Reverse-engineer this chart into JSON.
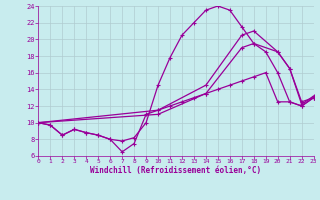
{
  "xlabel": "Windchill (Refroidissement éolien,°C)",
  "background_color": "#c8ecee",
  "grid_color": "#b0ccd0",
  "line_color": "#990099",
  "xlim": [
    0,
    23
  ],
  "ylim": [
    6,
    24
  ],
  "xticks": [
    0,
    1,
    2,
    3,
    4,
    5,
    6,
    7,
    8,
    9,
    10,
    11,
    12,
    13,
    14,
    15,
    16,
    17,
    18,
    19,
    20,
    21,
    22,
    23
  ],
  "yticks": [
    6,
    8,
    10,
    12,
    14,
    16,
    18,
    20,
    22,
    24
  ],
  "curve_high_x": [
    0,
    1,
    2,
    3,
    4,
    5,
    6,
    7,
    8,
    9,
    10,
    11,
    12,
    13,
    14,
    15,
    16,
    17,
    18,
    19,
    20,
    21,
    22,
    23
  ],
  "curve_high_y": [
    10.0,
    9.7,
    8.5,
    9.2,
    8.8,
    8.5,
    8.0,
    7.8,
    8.2,
    10.0,
    14.5,
    17.8,
    20.5,
    22.0,
    23.5,
    24.0,
    23.5,
    21.5,
    19.5,
    18.5,
    16.0,
    12.5,
    12.0,
    13.0
  ],
  "curve_diag_x": [
    0,
    10,
    14,
    17,
    18,
    20,
    21,
    22,
    23
  ],
  "curve_diag_y": [
    10.0,
    11.5,
    14.5,
    20.5,
    21.0,
    18.5,
    16.5,
    12.5,
    13.0
  ],
  "curve_diag2_x": [
    0,
    10,
    14,
    17,
    18,
    20,
    21,
    22,
    23
  ],
  "curve_diag2_y": [
    10.0,
    11.0,
    13.5,
    19.0,
    19.5,
    18.5,
    16.5,
    12.2,
    13.2
  ],
  "curve_low_x": [
    0,
    1,
    2,
    3,
    4,
    5,
    6,
    7,
    8,
    9,
    10,
    11,
    12,
    13,
    14,
    15,
    16,
    17,
    18,
    19,
    20,
    21,
    22,
    23
  ],
  "curve_low_y": [
    10.0,
    9.7,
    8.5,
    9.2,
    8.8,
    8.5,
    8.0,
    6.5,
    7.5,
    11.0,
    11.5,
    12.0,
    12.5,
    13.0,
    13.5,
    14.0,
    14.5,
    15.0,
    15.5,
    16.0,
    12.5,
    12.5,
    12.0,
    13.0
  ]
}
